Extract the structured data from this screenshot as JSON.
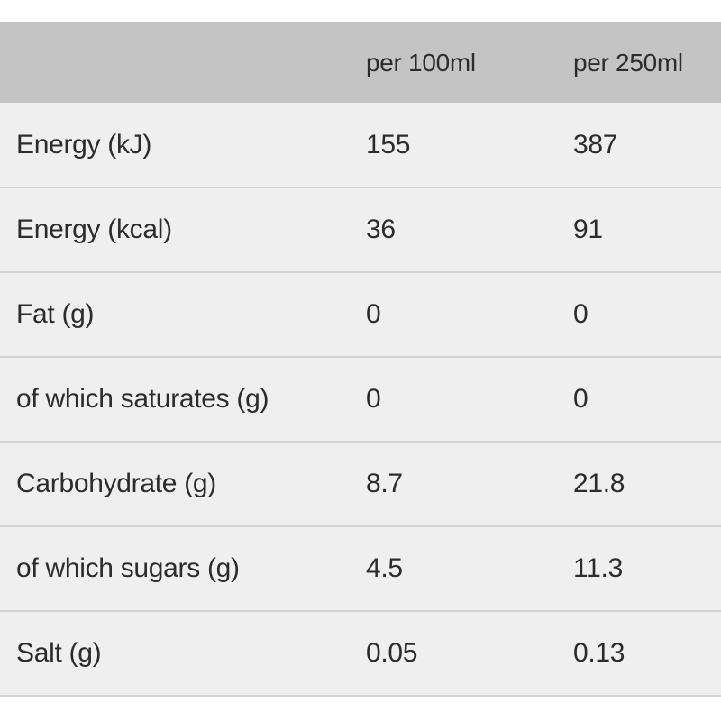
{
  "table": {
    "headers": [
      "",
      "per 100ml",
      "per 250ml"
    ],
    "rows": [
      {
        "label": "Energy (kJ)",
        "per100": "155",
        "per250": "387"
      },
      {
        "label": "Energy (kcal)",
        "per100": "36",
        "per250": "91"
      },
      {
        "label": "Fat (g)",
        "per100": "0",
        "per250": "0"
      },
      {
        "label": "of which saturates (g)",
        "per100": "0",
        "per250": "0"
      },
      {
        "label": "Carbohydrate (g)",
        "per100": "8.7",
        "per250": "21.8"
      },
      {
        "label": "of which sugars (g)",
        "per100": "4.5",
        "per250": "11.3"
      },
      {
        "label": "Salt (g)",
        "per100": "0.05",
        "per250": "0.13"
      }
    ]
  },
  "colors": {
    "header_bg": "#c4c4c4",
    "row_bg": "#efefef",
    "divider": "#d2d2d2",
    "text": "#2c2c2c"
  }
}
